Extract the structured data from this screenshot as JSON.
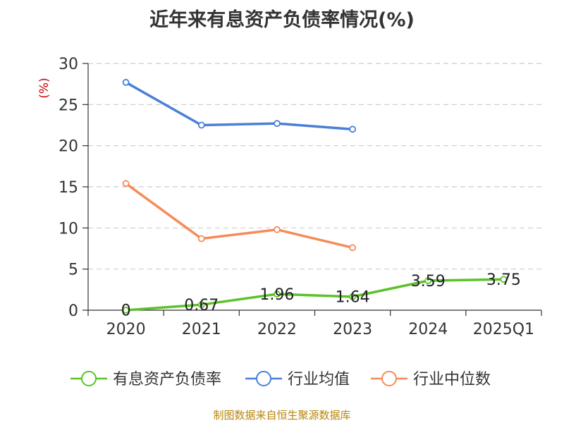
{
  "chart_data": {
    "type": "line",
    "title": "近年来有息资产负债率情况(%)",
    "ylabel": "(%)",
    "xlabel": "",
    "categories": [
      "2020",
      "2021",
      "2022",
      "2023",
      "2024",
      "2025Q1"
    ],
    "ylim": [
      0,
      30
    ],
    "yticks": [
      0,
      5,
      10,
      15,
      20,
      25,
      30
    ],
    "grid": true,
    "legend_position": "bottom",
    "series": [
      {
        "name": "有息资产负债率",
        "color": "#5cc22a",
        "values": [
          0,
          0.67,
          1.96,
          1.64,
          3.59,
          3.75
        ],
        "labels": [
          "0",
          "0.67",
          "1.96",
          "1.64",
          "3.59",
          "3.75"
        ]
      },
      {
        "name": "行业均值",
        "color": "#4a7fd8",
        "values": [
          27.7,
          22.5,
          22.7,
          22.0,
          null,
          null
        ]
      },
      {
        "name": "行业中位数",
        "color": "#f58c58",
        "values": [
          15.4,
          8.7,
          9.8,
          7.6,
          null,
          null
        ]
      }
    ]
  },
  "source": "制图数据来自恒生聚源数据库"
}
